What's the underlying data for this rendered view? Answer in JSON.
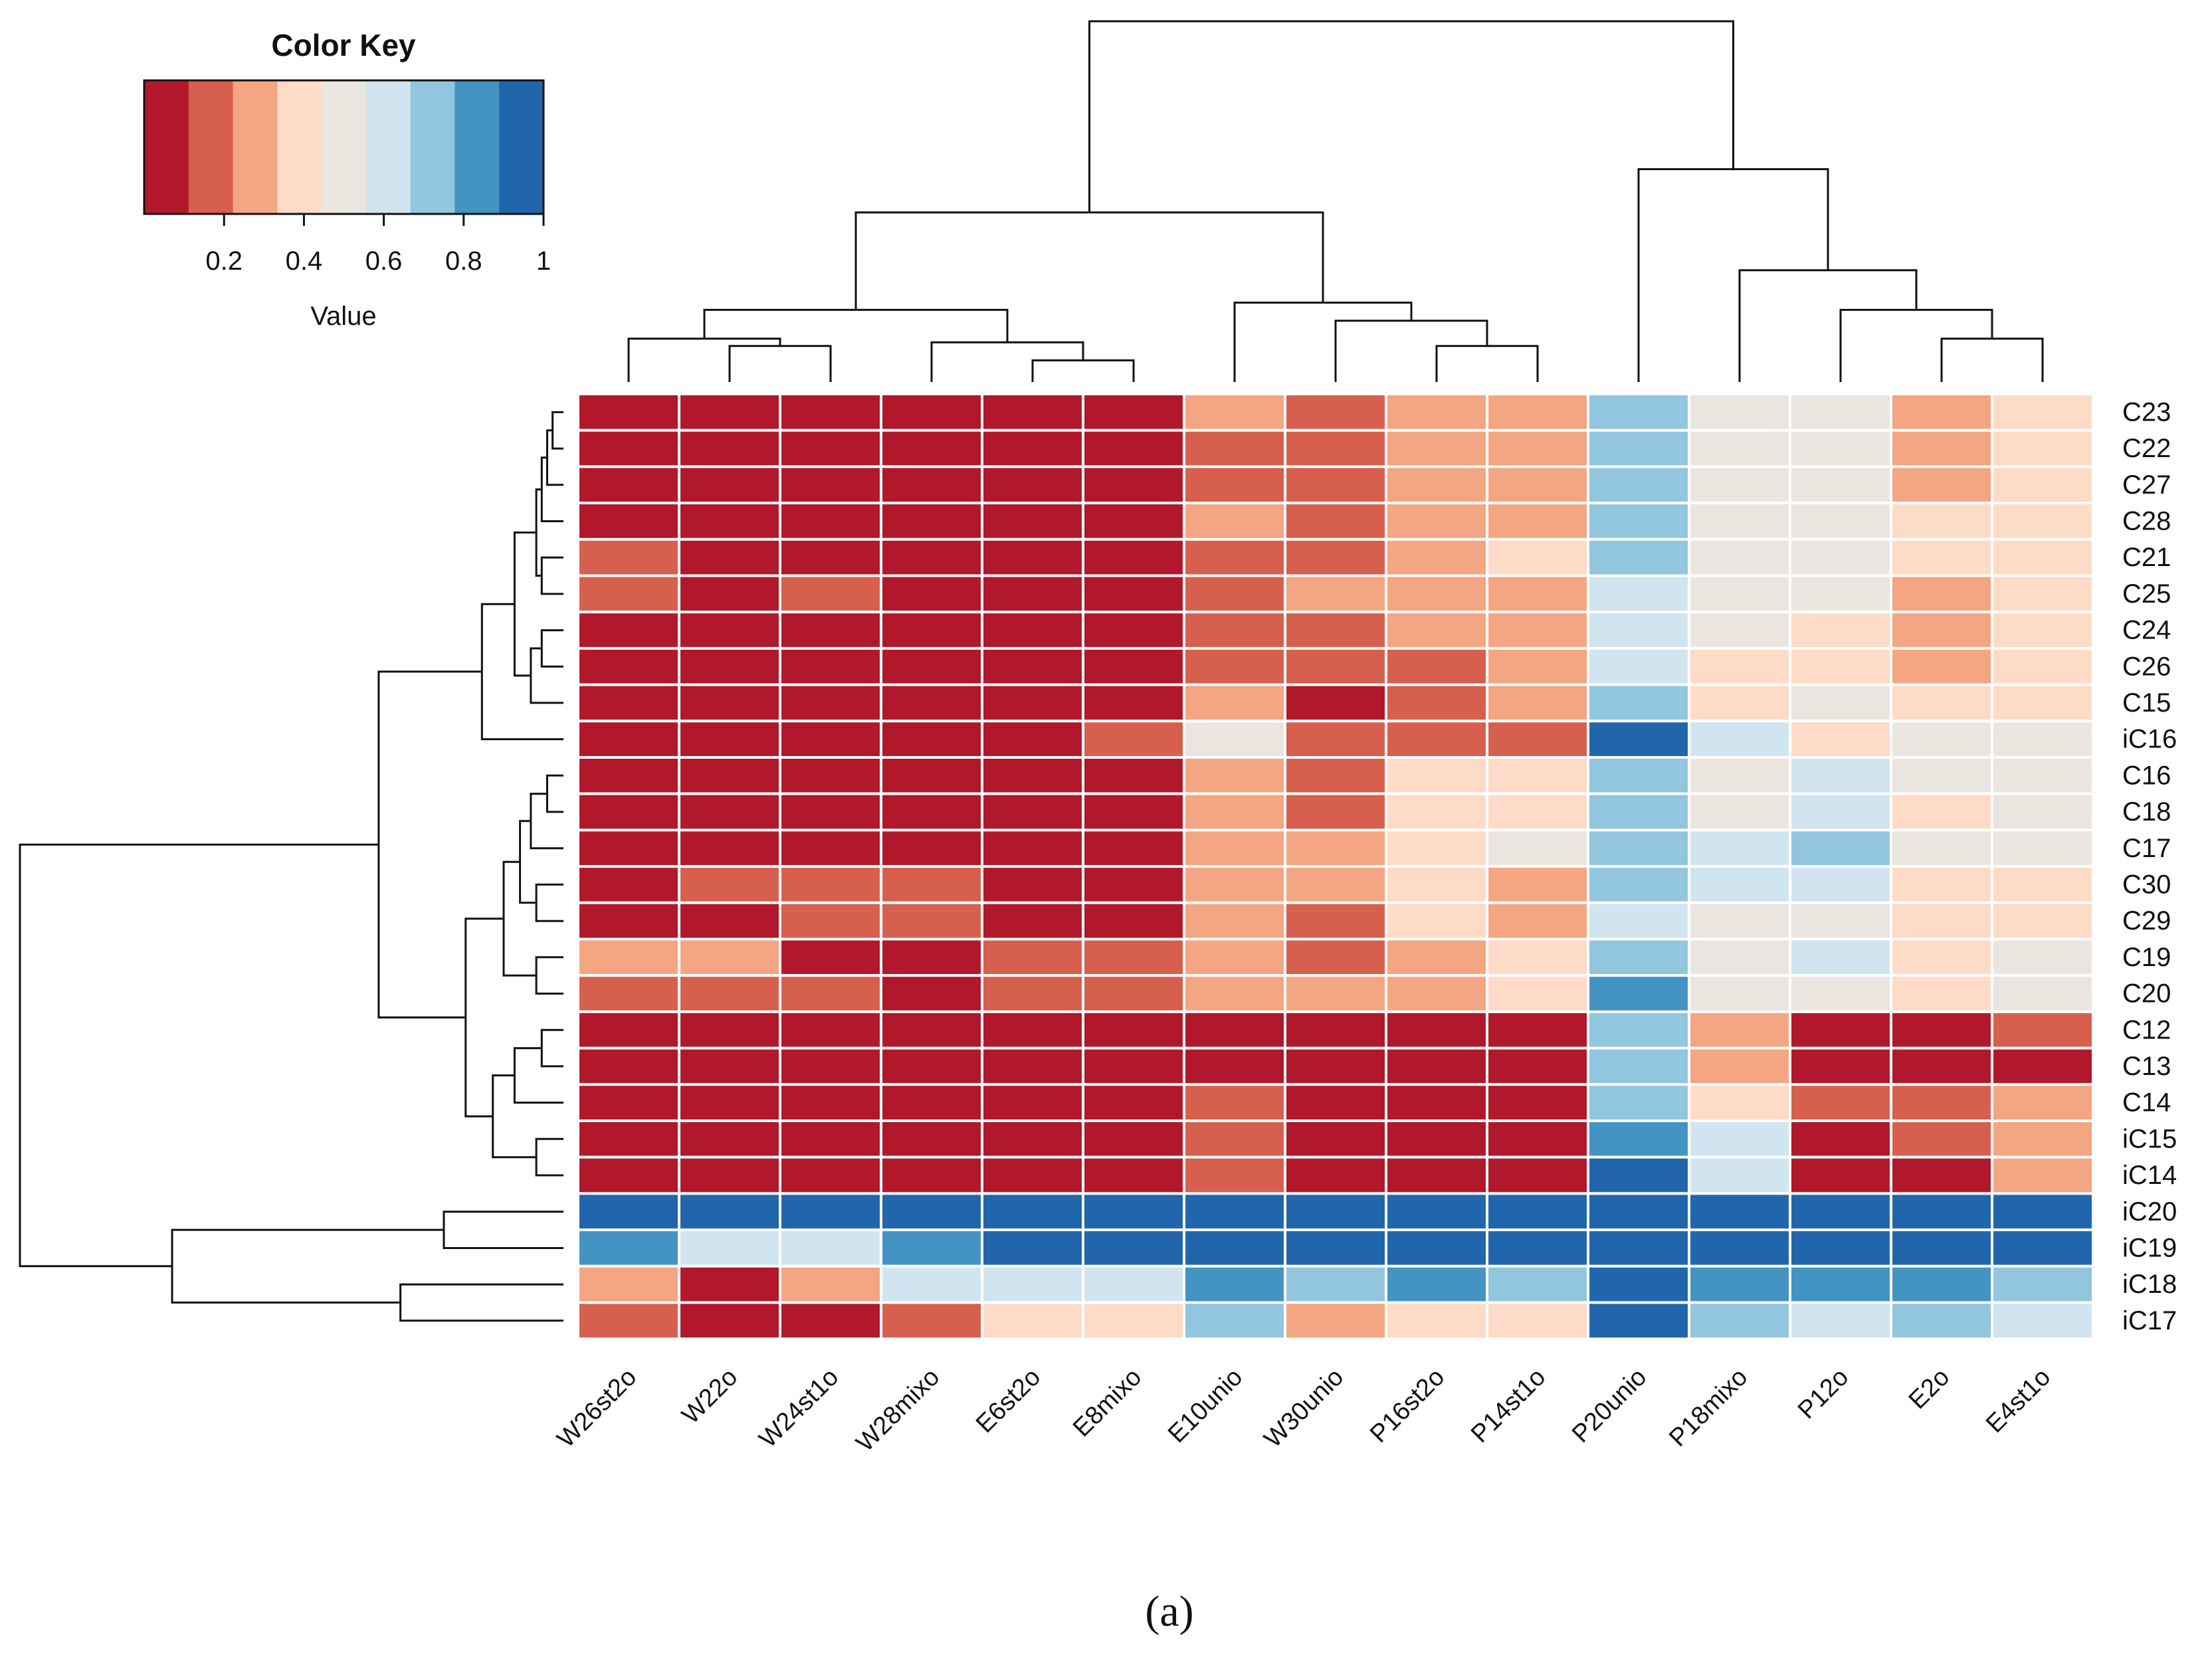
{
  "chart_data": {
    "type": "heatmap",
    "panel_label": "(a)",
    "columns": [
      "W26st2o",
      "W22o",
      "W24st1o",
      "W28mixo",
      "E6st2o",
      "E8mixo",
      "E10unio",
      "W30unio",
      "P16st2o",
      "P14st1o",
      "P20unio",
      "P18mixo",
      "P12o",
      "E2o",
      "E4st1o"
    ],
    "rows": [
      "C23",
      "C22",
      "C27",
      "C28",
      "C21",
      "C25",
      "C24",
      "C26",
      "C15",
      "iC16",
      "C16",
      "C18",
      "C17",
      "C30",
      "C29",
      "C19",
      "C20",
      "C12",
      "C13",
      "C14",
      "iC15",
      "iC14",
      "iC20",
      "iC19",
      "iC18",
      "iC17"
    ],
    "value_range": [
      0,
      1
    ],
    "bin_colors": [
      "#b2182b",
      "#d6604d",
      "#f4a582",
      "#fddbc7",
      "#ebe5e0",
      "#d1e5f0",
      "#92c5de",
      "#4393c3",
      "#2166ac"
    ],
    "values": [
      [
        0.05,
        0.05,
        0.05,
        0.05,
        0.05,
        0.05,
        0.25,
        0.15,
        0.25,
        0.25,
        0.75,
        0.45,
        0.45,
        0.25,
        0.35
      ],
      [
        0.05,
        0.05,
        0.05,
        0.05,
        0.05,
        0.05,
        0.15,
        0.15,
        0.25,
        0.25,
        0.75,
        0.45,
        0.45,
        0.25,
        0.35
      ],
      [
        0.05,
        0.05,
        0.05,
        0.05,
        0.05,
        0.05,
        0.15,
        0.15,
        0.25,
        0.25,
        0.75,
        0.45,
        0.45,
        0.25,
        0.35
      ],
      [
        0.05,
        0.05,
        0.05,
        0.05,
        0.05,
        0.05,
        0.25,
        0.15,
        0.25,
        0.25,
        0.75,
        0.45,
        0.45,
        0.35,
        0.35
      ],
      [
        0.15,
        0.05,
        0.05,
        0.05,
        0.05,
        0.05,
        0.15,
        0.15,
        0.25,
        0.35,
        0.75,
        0.45,
        0.45,
        0.35,
        0.35
      ],
      [
        0.15,
        0.05,
        0.15,
        0.05,
        0.05,
        0.05,
        0.15,
        0.25,
        0.25,
        0.25,
        0.65,
        0.45,
        0.45,
        0.25,
        0.35
      ],
      [
        0.05,
        0.05,
        0.05,
        0.05,
        0.05,
        0.05,
        0.15,
        0.15,
        0.25,
        0.25,
        0.65,
        0.45,
        0.35,
        0.25,
        0.35
      ],
      [
        0.05,
        0.05,
        0.05,
        0.05,
        0.05,
        0.05,
        0.15,
        0.15,
        0.15,
        0.25,
        0.65,
        0.35,
        0.35,
        0.25,
        0.35
      ],
      [
        0.05,
        0.05,
        0.05,
        0.05,
        0.05,
        0.05,
        0.25,
        0.05,
        0.15,
        0.25,
        0.75,
        0.35,
        0.45,
        0.35,
        0.35
      ],
      [
        0.05,
        0.05,
        0.05,
        0.05,
        0.05,
        0.15,
        0.45,
        0.15,
        0.15,
        0.15,
        0.95,
        0.65,
        0.35,
        0.45,
        0.45
      ],
      [
        0.05,
        0.05,
        0.05,
        0.05,
        0.05,
        0.05,
        0.25,
        0.15,
        0.35,
        0.35,
        0.75,
        0.45,
        0.65,
        0.45,
        0.45
      ],
      [
        0.05,
        0.05,
        0.05,
        0.05,
        0.05,
        0.05,
        0.25,
        0.15,
        0.35,
        0.35,
        0.75,
        0.45,
        0.65,
        0.35,
        0.45
      ],
      [
        0.05,
        0.05,
        0.05,
        0.05,
        0.05,
        0.05,
        0.25,
        0.25,
        0.35,
        0.45,
        0.75,
        0.65,
        0.75,
        0.45,
        0.45
      ],
      [
        0.05,
        0.15,
        0.15,
        0.15,
        0.05,
        0.05,
        0.25,
        0.25,
        0.35,
        0.25,
        0.75,
        0.65,
        0.65,
        0.35,
        0.35
      ],
      [
        0.05,
        0.05,
        0.15,
        0.15,
        0.05,
        0.05,
        0.25,
        0.15,
        0.35,
        0.25,
        0.65,
        0.45,
        0.45,
        0.35,
        0.35
      ],
      [
        0.25,
        0.25,
        0.05,
        0.05,
        0.15,
        0.15,
        0.25,
        0.15,
        0.25,
        0.35,
        0.75,
        0.45,
        0.65,
        0.35,
        0.45
      ],
      [
        0.15,
        0.15,
        0.15,
        0.05,
        0.15,
        0.15,
        0.25,
        0.25,
        0.25,
        0.35,
        0.85,
        0.45,
        0.45,
        0.35,
        0.45
      ],
      [
        0.05,
        0.05,
        0.05,
        0.05,
        0.05,
        0.05,
        0.05,
        0.05,
        0.05,
        0.05,
        0.75,
        0.25,
        0.05,
        0.05,
        0.15
      ],
      [
        0.05,
        0.05,
        0.05,
        0.05,
        0.05,
        0.05,
        0.05,
        0.05,
        0.05,
        0.05,
        0.75,
        0.25,
        0.05,
        0.05,
        0.05
      ],
      [
        0.05,
        0.05,
        0.05,
        0.05,
        0.05,
        0.05,
        0.15,
        0.05,
        0.05,
        0.05,
        0.75,
        0.35,
        0.15,
        0.15,
        0.25
      ],
      [
        0.05,
        0.05,
        0.05,
        0.05,
        0.05,
        0.05,
        0.15,
        0.05,
        0.05,
        0.05,
        0.85,
        0.65,
        0.05,
        0.15,
        0.25
      ],
      [
        0.05,
        0.05,
        0.05,
        0.05,
        0.05,
        0.05,
        0.15,
        0.05,
        0.05,
        0.05,
        0.95,
        0.65,
        0.05,
        0.05,
        0.25
      ],
      [
        0.95,
        0.95,
        0.95,
        0.95,
        0.95,
        0.95,
        0.95,
        0.95,
        0.95,
        0.95,
        0.95,
        0.95,
        0.95,
        0.95,
        0.95
      ],
      [
        0.85,
        0.65,
        0.65,
        0.85,
        0.95,
        0.95,
        0.95,
        0.95,
        0.95,
        0.95,
        0.95,
        0.95,
        0.95,
        0.95,
        0.95
      ],
      [
        0.25,
        0.05,
        0.25,
        0.65,
        0.65,
        0.65,
        0.85,
        0.75,
        0.85,
        0.75,
        0.95,
        0.85,
        0.85,
        0.85,
        0.75
      ],
      [
        0.15,
        0.05,
        0.05,
        0.15,
        0.35,
        0.35,
        0.75,
        0.25,
        0.35,
        0.35,
        0.95,
        0.75,
        0.65,
        0.75,
        0.65
      ]
    ],
    "color_key": {
      "title": "Color Key",
      "xlabel": "Value",
      "ticks": [
        0.2,
        0.4,
        0.6,
        0.8,
        1
      ],
      "tick_labels": [
        "0.2",
        "0.4",
        "0.6",
        "0.8",
        "1"
      ],
      "range": [
        0,
        1
      ]
    },
    "column_dendrogram": [
      {
        "a": "W24st1o",
        "b": "W22o",
        "h": 0.1
      },
      {
        "a": "W26st2o",
        "b": "m0",
        "h": 0.12
      },
      {
        "a": "E6st2o",
        "b": "E8mixo",
        "h": 0.06
      },
      {
        "a": "W28mixo",
        "b": "m2",
        "h": 0.11
      },
      {
        "a": "m1",
        "b": "m3",
        "h": 0.2
      },
      {
        "a": "P16st2o",
        "b": "P14st1o",
        "h": 0.1
      },
      {
        "a": "W30unio",
        "b": "m5",
        "h": 0.17
      },
      {
        "a": "E10unio",
        "b": "m6",
        "h": 0.22
      },
      {
        "a": "m4",
        "b": "m7",
        "h": 0.47
      },
      {
        "a": "E2o",
        "b": "E4st1o",
        "h": 0.12
      },
      {
        "a": "P12o",
        "b": "m9",
        "h": 0.2
      },
      {
        "a": "P18mixo",
        "b": "m10",
        "h": 0.31
      },
      {
        "a": "P20unio",
        "b": "m11",
        "h": 0.59
      },
      {
        "a": "m8",
        "b": "m12",
        "h": 1.0
      }
    ],
    "row_dendrogram": [
      {
        "a": "C23",
        "b": "C22",
        "h": 0.02
      },
      {
        "a": "m0",
        "b": "C27",
        "h": 0.03
      },
      {
        "a": "m1",
        "b": "C28",
        "h": 0.04
      },
      {
        "a": "C21",
        "b": "C25",
        "h": 0.04
      },
      {
        "a": "m2",
        "b": "m3",
        "h": 0.05
      },
      {
        "a": "C24",
        "b": "C26",
        "h": 0.04
      },
      {
        "a": "m5",
        "b": "C15",
        "h": 0.06
      },
      {
        "a": "m4",
        "b": "m6",
        "h": 0.09
      },
      {
        "a": "m7",
        "b": "iC16",
        "h": 0.15
      },
      {
        "a": "C16",
        "b": "C18",
        "h": 0.03
      },
      {
        "a": "m9",
        "b": "C17",
        "h": 0.06
      },
      {
        "a": "C30",
        "b": "C29",
        "h": 0.05
      },
      {
        "a": "m10",
        "b": "m11",
        "h": 0.08
      },
      {
        "a": "C19",
        "b": "C20",
        "h": 0.05
      },
      {
        "a": "m12",
        "b": "m13",
        "h": 0.11
      },
      {
        "a": "C12",
        "b": "C13",
        "h": 0.04
      },
      {
        "a": "m15",
        "b": "C14",
        "h": 0.09
      },
      {
        "a": "iC15",
        "b": "iC14",
        "h": 0.05
      },
      {
        "a": "m16",
        "b": "m17",
        "h": 0.13
      },
      {
        "a": "m14",
        "b": "m18",
        "h": 0.18
      },
      {
        "a": "m8",
        "b": "m19",
        "h": 0.34
      },
      {
        "a": "iC20",
        "b": "iC19",
        "h": 0.22
      },
      {
        "a": "iC18",
        "b": "iC17",
        "h": 0.3
      },
      {
        "a": "m21",
        "b": "m22",
        "h": 0.72
      },
      {
        "a": "m20",
        "b": "m23",
        "h": 1.0
      }
    ]
  }
}
